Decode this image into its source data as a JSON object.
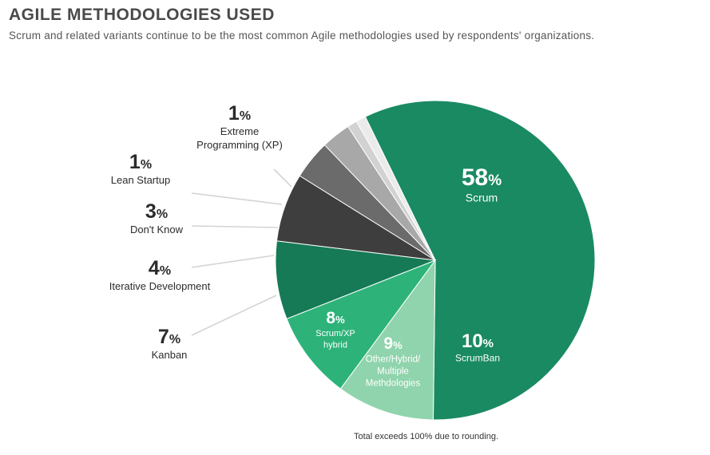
{
  "header": {
    "title": "AGILE METHODOLOGIES USED",
    "subtitle": "Scrum and related variants continue to be the most common Agile methodologies used by respondents' organizations."
  },
  "footnote": "Total exceeds 100% due to rounding.",
  "chart_data": {
    "type": "pie",
    "title": "AGILE METHODOLOGIES USED",
    "unit": "%",
    "slices": [
      {
        "label": "Scrum",
        "value": 58,
        "color": "#1a8a62",
        "text_color": "#ffffff"
      },
      {
        "label": "ScrumBan",
        "value": 10,
        "color": "#8fd4ac",
        "text_color": "#ffffff"
      },
      {
        "label": "Other/Hybrid/ Multiple Methdologies",
        "value": 9,
        "color": "#2db37a",
        "text_color": "#ffffff"
      },
      {
        "label": "Scrum/XP hybrid",
        "value": 8,
        "color": "#157a55",
        "text_color": "#ffffff"
      },
      {
        "label": "Kanban",
        "value": 7,
        "color": "#3e3e3e",
        "text_color": "#2b2b2b"
      },
      {
        "label": "Iterative Development",
        "value": 4,
        "color": "#6b6b6b",
        "text_color": "#2b2b2b"
      },
      {
        "label": "Don't Know",
        "value": 3,
        "color": "#a8a8a8",
        "text_color": "#2b2b2b"
      },
      {
        "label": "Lean Startup",
        "value": 1,
        "color": "#d2d2d2",
        "text_color": "#2b2b2b"
      },
      {
        "label": "Extreme Programming (XP)",
        "value": 1,
        "color": "#ebebeb",
        "text_color": "#2b2b2b"
      }
    ]
  }
}
